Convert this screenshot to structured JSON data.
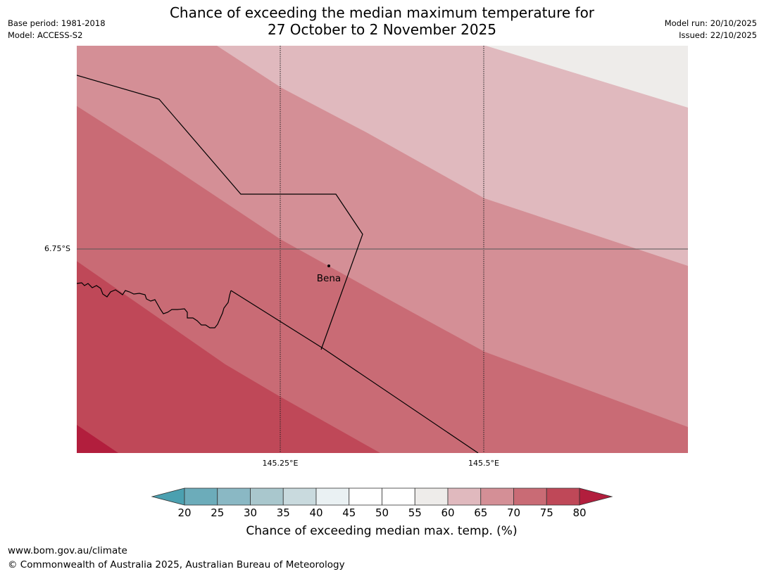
{
  "header": {
    "title_line1": "Chance of exceeding the median maximum temperature for",
    "title_line2": "27 October to 2 November 2025",
    "base_period": "Base period: 1981-2018",
    "model": "Model: ACCESS-S2",
    "model_run": "Model run: 20/10/2025",
    "issued": "Issued: 22/10/2025"
  },
  "map": {
    "latitude_label": "6.75°S",
    "longitude_labels": [
      "145.25°E",
      "145.5°E"
    ],
    "place": {
      "name": "Bena",
      "marker": "town-dot"
    },
    "zone_colors": {
      "60-65": "#e0b9be",
      "65-70": "#d48f96",
      "70-75": "#c96b75",
      "75-80": "#bf4858",
      "80+": "#b21e3d",
      "55-60": "#eeecea"
    }
  },
  "colorbar": {
    "title": "Chance of exceeding median max. temp. (%)",
    "ticks": [
      "20",
      "25",
      "30",
      "35",
      "40",
      "45",
      "50",
      "55",
      "60",
      "65",
      "70",
      "75",
      "80"
    ],
    "under_color": "#4ba0b0",
    "over_color": "#b21e3d",
    "bin_colors": [
      "#6cacba",
      "#8ab8c4",
      "#a9c7cd",
      "#c9dade",
      "#eaf1f3",
      "#ffffff",
      "#ffffff",
      "#eeecea",
      "#e0b9be",
      "#d48f96",
      "#c96b75",
      "#bf4858"
    ]
  },
  "footer": {
    "url": "www.bom.gov.au/climate",
    "copyright": "© Commonwealth of Australia 2025, Australian Bureau of Meteorology"
  }
}
